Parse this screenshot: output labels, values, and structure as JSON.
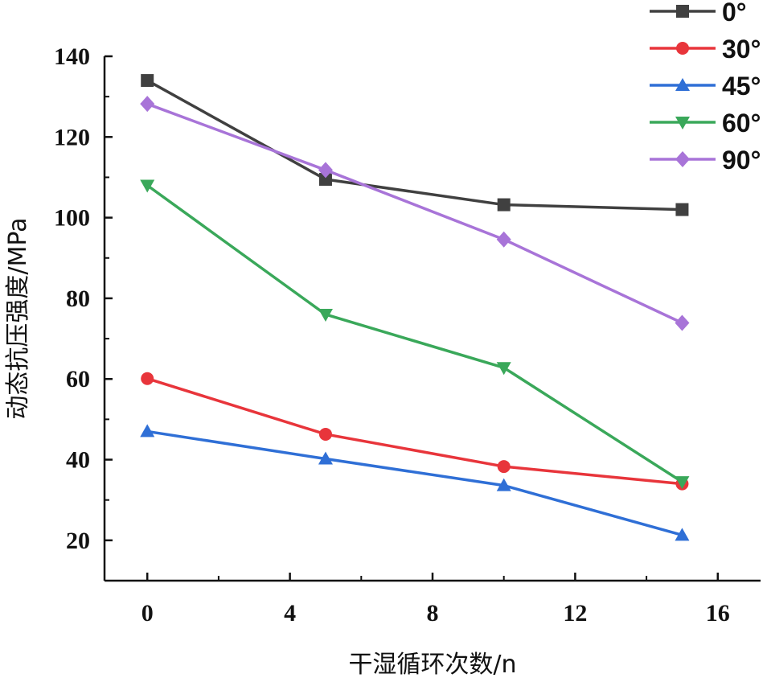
{
  "chart_data": {
    "type": "line",
    "title": "",
    "xlabel": "干湿循环次数/n",
    "ylabel": "动态抗压强度/MPa",
    "xlim": [
      -1.2,
      17.2
    ],
    "ylim": [
      10,
      140
    ],
    "xticks": [
      0,
      4,
      8,
      12,
      16
    ],
    "yticks": [
      20,
      40,
      60,
      80,
      100,
      120,
      140
    ],
    "x": [
      0,
      5,
      10,
      15
    ],
    "grid": false,
    "legend_position": "top-right",
    "series": [
      {
        "name": "0°",
        "values": [
          134.0,
          109.5,
          103.2,
          102.0
        ],
        "color": "#404040",
        "marker": "square"
      },
      {
        "name": "30°",
        "values": [
          60.1,
          46.3,
          38.3,
          34.0
        ],
        "color": "#e8353b",
        "marker": "circle"
      },
      {
        "name": "45°",
        "values": [
          47.0,
          40.2,
          33.6,
          21.3
        ],
        "color": "#2f6fd6",
        "marker": "triangle-up"
      },
      {
        "name": "60°",
        "values": [
          108.0,
          76.0,
          62.8,
          34.5
        ],
        "color": "#3aa85a",
        "marker": "triangle-down"
      },
      {
        "name": "90°",
        "values": [
          128.2,
          111.8,
          94.6,
          73.9
        ],
        "color": "#a874d8",
        "marker": "diamond"
      }
    ]
  }
}
